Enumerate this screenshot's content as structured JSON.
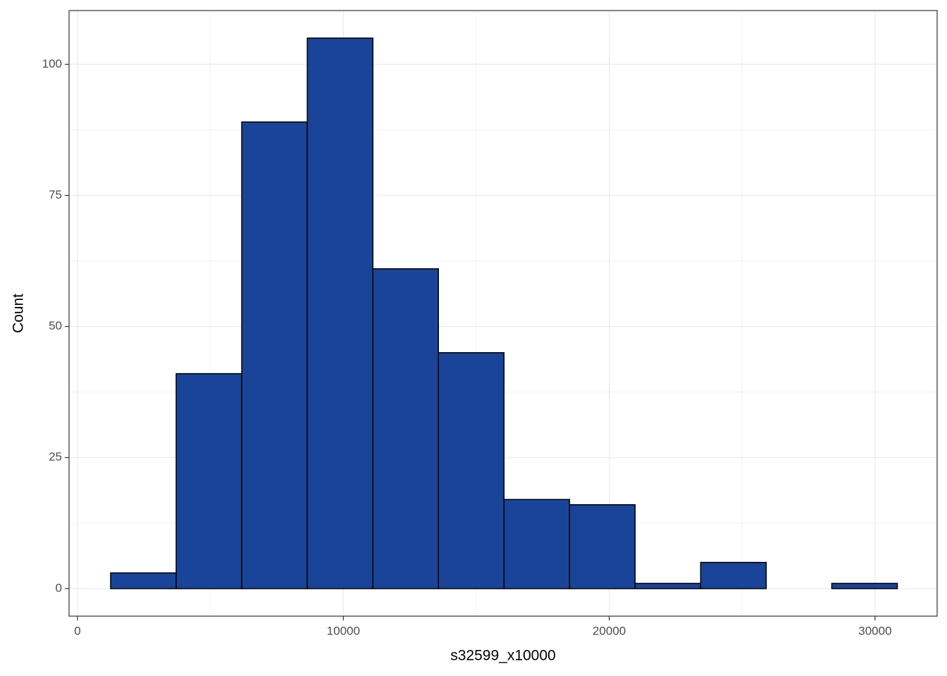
{
  "chart_data": {
    "type": "histogram",
    "x_label": "s32599_x10000",
    "y_label": "Count",
    "bins": [
      1246,
      3712,
      6178,
      8644,
      11110,
      13576,
      16042,
      18508,
      20974,
      23440,
      25906,
      28372,
      30838
    ],
    "counts": [
      3,
      41,
      89,
      105,
      61,
      45,
      17,
      16,
      1,
      5,
      0,
      1
    ],
    "color": "#1a4499",
    "xlim": [
      -318,
      32335
    ],
    "xticks": [
      0,
      10000,
      20000,
      30000
    ],
    "ylim": [
      -5.25,
      110.25
    ],
    "yticks": [
      0,
      25,
      50,
      75,
      100
    ],
    "grid": true
  }
}
